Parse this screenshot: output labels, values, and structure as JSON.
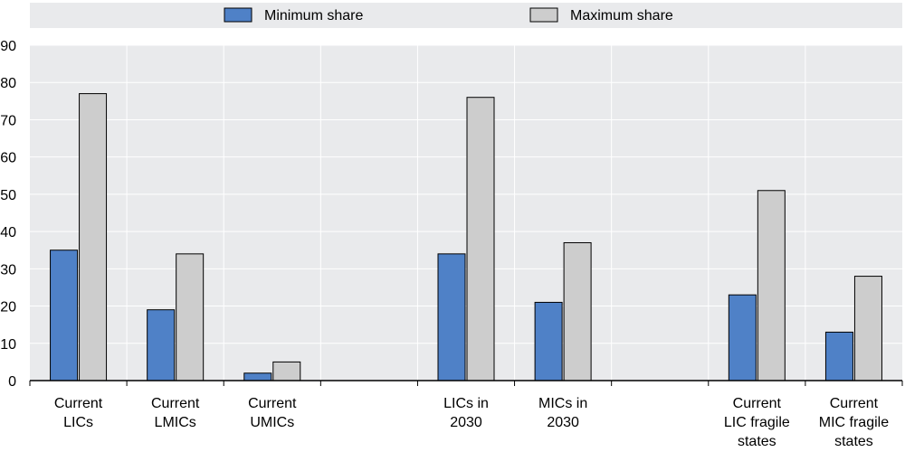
{
  "chart_data": {
    "type": "bar",
    "ylim": [
      0,
      90
    ],
    "yticks": [
      0,
      10,
      20,
      30,
      40,
      50,
      60,
      70,
      80,
      90
    ],
    "grid": true,
    "legend_position": "top",
    "slots": [
      {
        "label": [
          "Current",
          "LICs"
        ],
        "min": 35,
        "max": 77
      },
      {
        "label": [
          "Current",
          "LMICs"
        ],
        "min": 19,
        "max": 34
      },
      {
        "label": [
          "Current",
          "UMICs"
        ],
        "min": 2,
        "max": 5
      },
      {
        "label": [],
        "min": null,
        "max": null
      },
      {
        "label": [
          "LICs in",
          "2030"
        ],
        "min": 34,
        "max": 76
      },
      {
        "label": [
          "MICs in",
          "2030"
        ],
        "min": 21,
        "max": 37
      },
      {
        "label": [],
        "min": null,
        "max": null
      },
      {
        "label": [
          "Current",
          "LIC fragile",
          "states"
        ],
        "min": 23,
        "max": 51
      },
      {
        "label": [
          "Current",
          "MIC fragile",
          "states"
        ],
        "min": 13,
        "max": 28
      }
    ],
    "series": [
      {
        "name": "Minimum share",
        "key": "min",
        "color": "#4f81c7"
      },
      {
        "name": "Maximum share",
        "key": "max",
        "color": "#cdcdcd"
      }
    ]
  },
  "colors": {
    "plot_background": "#e9eaec",
    "gridline": "#ffffff",
    "bar_outline": "#000000",
    "axis": "#000000"
  }
}
